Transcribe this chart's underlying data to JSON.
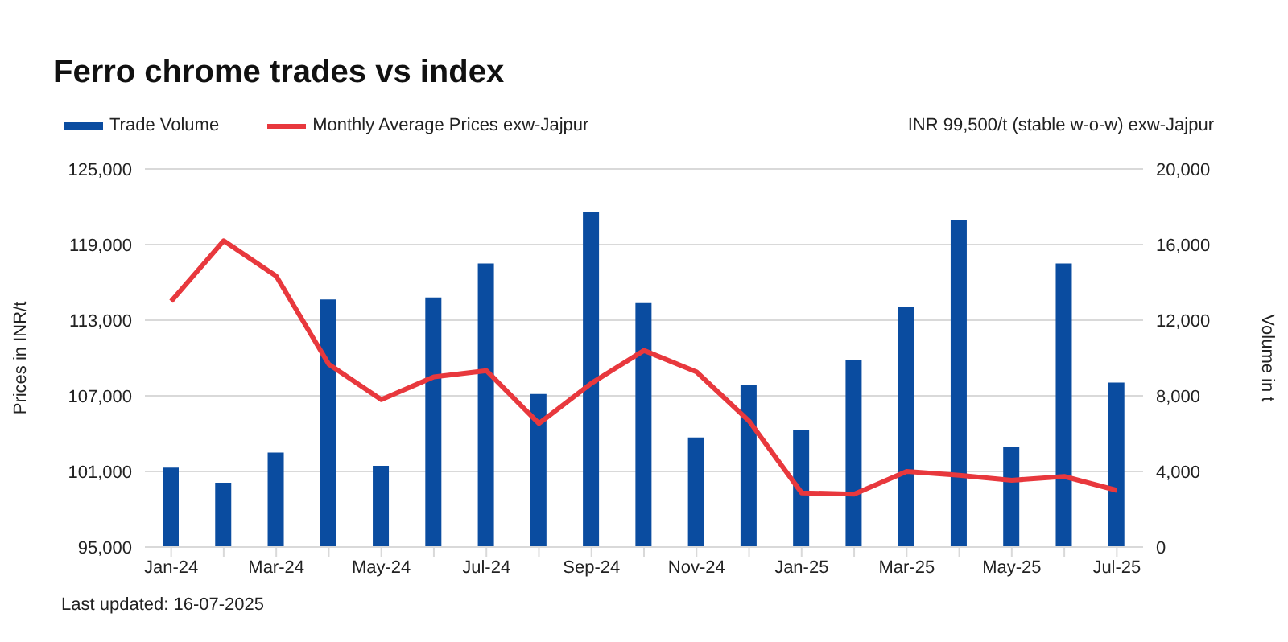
{
  "chart_data": {
    "type": "bar",
    "title": "Ferro chrome trades vs index",
    "categories": [
      "Jan-24",
      null,
      "Mar-24",
      null,
      "May-24",
      null,
      "Jul-24",
      null,
      "Sep-24",
      null,
      "Nov-24",
      null,
      "Jan-25",
      null,
      "Mar-25",
      null,
      "May-25",
      null,
      "Jul-25"
    ],
    "series": [
      {
        "name": "Trade Volume",
        "axis": "y2",
        "color": "#0a4ca0",
        "values": [
          4200,
          3400,
          5000,
          13100,
          4300,
          13200,
          15000,
          8100,
          17700,
          12900,
          5800,
          8600,
          6200,
          9900,
          12700,
          17300,
          5300,
          15000,
          8700
        ]
      },
      {
        "name": "Monthly Average Prices exw-Jajpur",
        "type": "line",
        "axis": "y",
        "color": "#e8383d",
        "values": [
          114500,
          119300,
          116500,
          109500,
          106700,
          108500,
          109000,
          104800,
          108000,
          110600,
          108900,
          105000,
          99300,
          99200,
          101000,
          100700,
          100300,
          100600,
          99500
        ]
      }
    ],
    "ylabel": "Prices in INR/t",
    "y2label": "Volume in t",
    "ylim": [
      95000,
      125000
    ],
    "yticks": [
      {
        "value": 95000,
        "label": "95,000"
      },
      {
        "value": 101000,
        "label": "101,000"
      },
      {
        "value": 107000,
        "label": "107,000"
      },
      {
        "value": 113000,
        "label": "113,000"
      },
      {
        "value": 119000,
        "label": "119,000"
      },
      {
        "value": 125000,
        "label": "125,000"
      }
    ],
    "y2lim": [
      0,
      20000
    ],
    "y2ticks": [
      0,
      {
        "value": 4000,
        "label": "4,000"
      },
      {
        "value": 8000,
        "label": "8,000"
      },
      {
        "value": 12000,
        "label": "12,000"
      },
      {
        "value": 16000,
        "label": "16,000"
      },
      {
        "value": 20000,
        "label": "20,000"
      }
    ],
    "grid": "y",
    "legend": "top left",
    "marker": "none",
    "annotations": [
      "INR 99,500/t (stable w-o-w) exw-Jajpur",
      "Last updated: 16-07-2025"
    ]
  }
}
